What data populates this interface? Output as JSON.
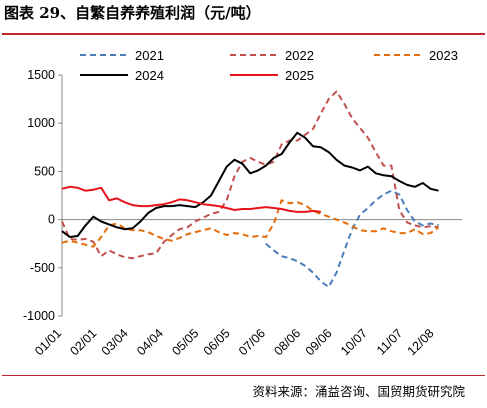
{
  "header": {
    "title": "图表 29、自繁自养养殖利润（元/吨）"
  },
  "footer": {
    "source": "资料来源：涌益咨询、国贸期货研究院"
  },
  "chart_data": {
    "type": "line",
    "title": "图表 29、自繁自养养殖利润（元/吨）",
    "xlabel": "",
    "ylabel": "",
    "ylim": [
      -1000,
      1500
    ],
    "yticks": [
      -1000,
      -500,
      0,
      500,
      1000,
      1500
    ],
    "ytick_labels": [
      "-1000",
      "-500",
      "0",
      "500",
      "1000",
      "1500"
    ],
    "xlim": [
      1,
      52
    ],
    "xticks": [
      1,
      5.5,
      9.5,
      14,
      18.5,
      22.5,
      27,
      31.5,
      35.5,
      40,
      44.5,
      48.5
    ],
    "xtick_labels": [
      "01/01",
      "02/01",
      "03/04",
      "04/04",
      "05/05",
      "06/05",
      "07/06",
      "08/06",
      "09/06",
      "10/07",
      "11/07",
      "12/08"
    ],
    "grid": false,
    "legend_position": "top",
    "series": [
      {
        "name": "2021",
        "color": "#4a7ebb",
        "dash": "dash",
        "x": [
          27,
          28,
          29,
          30,
          31,
          32,
          33,
          34,
          35,
          36,
          37,
          38,
          39,
          40,
          41,
          42,
          43,
          44,
          45,
          46,
          47,
          48,
          49
        ],
        "values": [
          -250,
          -320,
          -380,
          -400,
          -430,
          -480,
          -550,
          -640,
          -700,
          -550,
          -320,
          -100,
          50,
          120,
          200,
          260,
          300,
          260,
          100,
          -20,
          -60,
          -40,
          -60
        ]
      },
      {
        "name": "2022",
        "color": "#c0504d",
        "dash": "dash",
        "x": [
          1,
          2,
          3,
          4,
          5,
          6,
          7,
          8,
          9,
          10,
          11,
          12,
          13,
          14,
          15,
          16,
          17,
          18,
          19,
          20,
          21,
          22,
          23,
          24,
          25,
          26,
          27,
          28,
          29,
          30,
          31,
          32,
          33,
          34,
          35,
          36,
          37,
          38,
          39,
          40,
          41,
          42,
          43,
          44,
          45,
          46,
          47,
          48,
          49
        ],
        "values": [
          -20,
          -200,
          -210,
          -200,
          -230,
          -380,
          -320,
          -360,
          -390,
          -400,
          -380,
          -360,
          -350,
          -230,
          -160,
          -100,
          -80,
          -20,
          20,
          60,
          80,
          200,
          450,
          600,
          640,
          600,
          570,
          600,
          780,
          820,
          820,
          880,
          940,
          1100,
          1250,
          1330,
          1200,
          1050,
          950,
          850,
          700,
          560,
          560,
          100,
          -30,
          -60,
          -80,
          -70,
          -80
        ]
      },
      {
        "name": "2023",
        "color": "#e46c0a",
        "dash": "dash",
        "x": [
          1,
          2,
          3,
          4,
          5,
          6,
          7,
          8,
          9,
          10,
          11,
          12,
          13,
          14,
          15,
          16,
          17,
          18,
          19,
          20,
          21,
          22,
          23,
          24,
          25,
          26,
          27,
          28,
          29,
          30,
          31,
          32,
          33,
          34,
          35,
          36,
          37,
          38,
          39,
          40,
          41,
          42,
          43,
          44,
          45,
          46,
          47,
          48,
          49
        ],
        "values": [
          -240,
          -220,
          -240,
          -260,
          -280,
          -180,
          -60,
          -40,
          -90,
          -110,
          -110,
          -130,
          -170,
          -200,
          -220,
          -190,
          -150,
          -130,
          -110,
          -90,
          -130,
          -160,
          -140,
          -150,
          -180,
          -170,
          -180,
          -40,
          200,
          170,
          180,
          150,
          90,
          60,
          30,
          0,
          -30,
          -70,
          -110,
          -120,
          -120,
          -90,
          -120,
          -140,
          -140,
          -100,
          -150,
          -140,
          -80
        ]
      },
      {
        "name": "2024",
        "color": "#000000",
        "dash": "solid",
        "x": [
          1,
          2,
          3,
          4,
          5,
          6,
          7,
          8,
          9,
          10,
          11,
          12,
          13,
          14,
          15,
          16,
          17,
          18,
          19,
          20,
          21,
          22,
          23,
          24,
          25,
          26,
          27,
          28,
          29,
          30,
          31,
          32,
          33,
          34,
          35,
          36,
          37,
          38,
          39,
          40,
          41,
          42,
          43,
          44,
          45,
          46,
          47,
          48,
          49
        ],
        "values": [
          -120,
          -180,
          -170,
          -60,
          30,
          -20,
          -50,
          -80,
          -100,
          -90,
          -20,
          70,
          120,
          140,
          140,
          150,
          140,
          130,
          180,
          250,
          400,
          550,
          620,
          580,
          480,
          510,
          560,
          640,
          680,
          800,
          900,
          850,
          760,
          750,
          700,
          620,
          560,
          540,
          510,
          550,
          480,
          460,
          450,
          400,
          360,
          340,
          380,
          320,
          300
        ]
      },
      {
        "name": "2025",
        "color": "#e8141b",
        "dash": "solid",
        "x": [
          1,
          2,
          3,
          4,
          5,
          6,
          7,
          8,
          9,
          10,
          11,
          12,
          13,
          14,
          15,
          16,
          17,
          18,
          19,
          20,
          21,
          22,
          23,
          24,
          25,
          26,
          27,
          28,
          29,
          30,
          31,
          32,
          33,
          34
        ],
        "values": [
          320,
          340,
          330,
          300,
          310,
          330,
          200,
          220,
          180,
          150,
          140,
          140,
          150,
          160,
          180,
          210,
          200,
          180,
          160,
          150,
          140,
          120,
          100,
          110,
          110,
          120,
          130,
          120,
          110,
          90,
          80,
          80,
          90,
          80
        ]
      }
    ]
  }
}
